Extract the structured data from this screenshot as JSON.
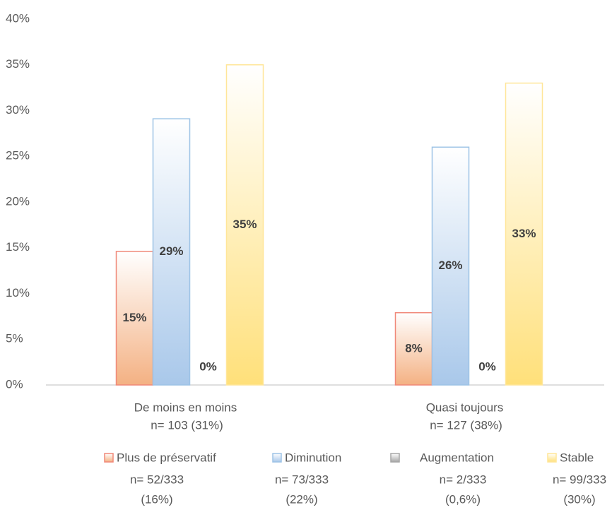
{
  "chart_data": {
    "type": "bar",
    "categories": [
      "De moins en moins",
      "Quasi toujours"
    ],
    "category_notes": [
      "n= 103 (31%)",
      "n= 127 (38%)"
    ],
    "series": [
      {
        "name": "Plus de préservatif",
        "color": "#f4b183",
        "edge_color": "#f08878",
        "values": [
          14.6,
          7.9
        ],
        "value_labels": [
          "15%",
          "8%"
        ],
        "note": [
          "n= 52/333",
          "(16%)"
        ]
      },
      {
        "name": "Diminution",
        "color": "#a9c8ea",
        "edge_color": "#9dc3e6",
        "values": [
          29.1,
          26
        ],
        "value_labels": [
          "29%",
          "26%"
        ],
        "note": [
          "n= 73/333",
          "(22%)"
        ]
      },
      {
        "name": "Augmentation",
        "color": "#a6a6a6",
        "edge_color": "#a6a6a6",
        "values": [
          0,
          0
        ],
        "value_labels": [
          "0%",
          "0%"
        ],
        "note": [
          "n= 2/333",
          "(0,6%)"
        ]
      },
      {
        "name": "Stable",
        "color": "#ffe07a",
        "edge_color": "#ffe699",
        "values": [
          35,
          33
        ],
        "value_labels": [
          "35%",
          "33%"
        ],
        "note": [
          "n= 99/333",
          "(30%)"
        ]
      }
    ],
    "ylim": [
      0,
      40
    ],
    "yticks": [
      {
        "value": 0,
        "label": "0%"
      },
      {
        "value": 5,
        "label": "5%"
      },
      {
        "value": 10,
        "label": "10%"
      },
      {
        "value": 15,
        "label": "15%"
      },
      {
        "value": 20,
        "label": "20%"
      },
      {
        "value": 25,
        "label": "25%"
      },
      {
        "value": 30,
        "label": "30%"
      },
      {
        "value": 35,
        "label": "35%"
      },
      {
        "value": 40,
        "label": "40%"
      }
    ],
    "grid": false
  }
}
